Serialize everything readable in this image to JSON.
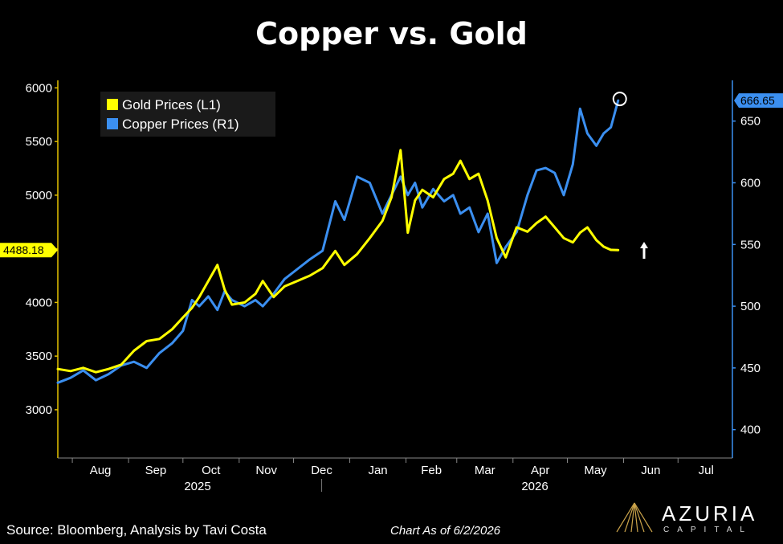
{
  "title": "Copper vs. Gold",
  "footer": {
    "source": "Source: Bloomberg, Analysis by Tavi Costa",
    "as_of": "Chart As of 6/2/2026"
  },
  "logo": {
    "name": "AZURIA",
    "sub": "CAPITAL",
    "icon": "mountain-peak-icon"
  },
  "chart_data": {
    "type": "line",
    "title": "Copper vs. Gold",
    "grid": false,
    "legend_placement": "top-left",
    "x_months": [
      "Aug",
      "Sep",
      "Oct",
      "Nov",
      "Dec",
      "Jan",
      "Feb",
      "Mar",
      "Apr",
      "May",
      "Jun",
      "Jul"
    ],
    "x_years": [
      "2025",
      "2026"
    ],
    "left_axis": {
      "ticks": [
        3000,
        3500,
        4000,
        4500,
        5000,
        5500,
        6000
      ],
      "range": [
        2550,
        6070
      ]
    },
    "right_axis": {
      "ticks": [
        400,
        450,
        500,
        550,
        600,
        650
      ],
      "range": [
        377,
        683
      ]
    },
    "last_values": {
      "gold": "4488.18",
      "copper": "666.65"
    },
    "colors": {
      "gold": "#ffff00",
      "copper": "#3b8ff0",
      "axis_left": "#e6c200",
      "axis_right": "#3b8ff0"
    },
    "series": [
      {
        "name": "Gold Prices (L1)",
        "axis": "left",
        "points": [
          [
            "2025-07-24",
            3380
          ],
          [
            "2025-07-31",
            3360
          ],
          [
            "2025-08-07",
            3390
          ],
          [
            "2025-08-14",
            3350
          ],
          [
            "2025-08-21",
            3380
          ],
          [
            "2025-08-28",
            3420
          ],
          [
            "2025-09-04",
            3550
          ],
          [
            "2025-09-11",
            3640
          ],
          [
            "2025-09-18",
            3660
          ],
          [
            "2025-09-25",
            3750
          ],
          [
            "2025-10-01",
            3860
          ],
          [
            "2025-10-06",
            3950
          ],
          [
            "2025-10-10",
            4050
          ],
          [
            "2025-10-15",
            4200
          ],
          [
            "2025-10-20",
            4350
          ],
          [
            "2025-10-24",
            4120
          ],
          [
            "2025-10-28",
            3980
          ],
          [
            "2025-11-04",
            4000
          ],
          [
            "2025-11-10",
            4080
          ],
          [
            "2025-11-14",
            4200
          ],
          [
            "2025-11-20",
            4050
          ],
          [
            "2025-11-26",
            4150
          ],
          [
            "2025-12-03",
            4200
          ],
          [
            "2025-12-10",
            4250
          ],
          [
            "2025-12-17",
            4320
          ],
          [
            "2025-12-24",
            4480
          ],
          [
            "2025-12-29",
            4350
          ],
          [
            "2026-01-05",
            4450
          ],
          [
            "2026-01-12",
            4600
          ],
          [
            "2026-01-19",
            4760
          ],
          [
            "2026-01-24",
            4980
          ],
          [
            "2026-01-29",
            5420
          ],
          [
            "2026-02-02",
            4650
          ],
          [
            "2026-02-06",
            4950
          ],
          [
            "2026-02-10",
            5050
          ],
          [
            "2026-02-16",
            4980
          ],
          [
            "2026-02-22",
            5150
          ],
          [
            "2026-02-27",
            5200
          ],
          [
            "2026-03-03",
            5320
          ],
          [
            "2026-03-08",
            5150
          ],
          [
            "2026-03-13",
            5200
          ],
          [
            "2026-03-18",
            4950
          ],
          [
            "2026-03-23",
            4600
          ],
          [
            "2026-03-28",
            4420
          ],
          [
            "2026-04-03",
            4700
          ],
          [
            "2026-04-09",
            4660
          ],
          [
            "2026-04-14",
            4740
          ],
          [
            "2026-04-19",
            4800
          ],
          [
            "2026-04-24",
            4700
          ],
          [
            "2026-04-29",
            4600
          ],
          [
            "2026-05-04",
            4560
          ],
          [
            "2026-05-08",
            4650
          ],
          [
            "2026-05-12",
            4700
          ],
          [
            "2026-05-17",
            4580
          ],
          [
            "2026-05-21",
            4520
          ],
          [
            "2026-05-25",
            4490
          ],
          [
            "2026-05-29",
            4488.18
          ]
        ]
      },
      {
        "name": "Copper Prices (R1)",
        "axis": "right",
        "points": [
          [
            "2025-07-24",
            438
          ],
          [
            "2025-07-31",
            442
          ],
          [
            "2025-08-07",
            448
          ],
          [
            "2025-08-14",
            440
          ],
          [
            "2025-08-21",
            445
          ],
          [
            "2025-08-28",
            452
          ],
          [
            "2025-09-04",
            455
          ],
          [
            "2025-09-11",
            450
          ],
          [
            "2025-09-18",
            462
          ],
          [
            "2025-09-25",
            470
          ],
          [
            "2025-10-01",
            480
          ],
          [
            "2025-10-06",
            505
          ],
          [
            "2025-10-10",
            500
          ],
          [
            "2025-10-15",
            508
          ],
          [
            "2025-10-20",
            497
          ],
          [
            "2025-10-24",
            512
          ],
          [
            "2025-10-28",
            505
          ],
          [
            "2025-11-04",
            500
          ],
          [
            "2025-11-10",
            505
          ],
          [
            "2025-11-14",
            500
          ],
          [
            "2025-11-20",
            510
          ],
          [
            "2025-11-26",
            522
          ],
          [
            "2025-12-03",
            530
          ],
          [
            "2025-12-10",
            538
          ],
          [
            "2025-12-17",
            545
          ],
          [
            "2025-12-24",
            585
          ],
          [
            "2025-12-29",
            570
          ],
          [
            "2026-01-05",
            605
          ],
          [
            "2026-01-12",
            600
          ],
          [
            "2026-01-19",
            575
          ],
          [
            "2026-01-24",
            590
          ],
          [
            "2026-01-29",
            605
          ],
          [
            "2026-02-02",
            590
          ],
          [
            "2026-02-06",
            600
          ],
          [
            "2026-02-10",
            580
          ],
          [
            "2026-02-16",
            595
          ],
          [
            "2026-02-22",
            585
          ],
          [
            "2026-02-27",
            590
          ],
          [
            "2026-03-03",
            575
          ],
          [
            "2026-03-08",
            580
          ],
          [
            "2026-03-13",
            560
          ],
          [
            "2026-03-18",
            575
          ],
          [
            "2026-03-23",
            535
          ],
          [
            "2026-03-28",
            548
          ],
          [
            "2026-04-03",
            560
          ],
          [
            "2026-04-09",
            590
          ],
          [
            "2026-04-14",
            610
          ],
          [
            "2026-04-19",
            612
          ],
          [
            "2026-04-24",
            608
          ],
          [
            "2026-04-29",
            590
          ],
          [
            "2026-05-04",
            615
          ],
          [
            "2026-05-08",
            660
          ],
          [
            "2026-05-12",
            640
          ],
          [
            "2026-05-17",
            630
          ],
          [
            "2026-05-21",
            640
          ],
          [
            "2026-05-25",
            645
          ],
          [
            "2026-05-29",
            666.65
          ]
        ]
      }
    ]
  }
}
